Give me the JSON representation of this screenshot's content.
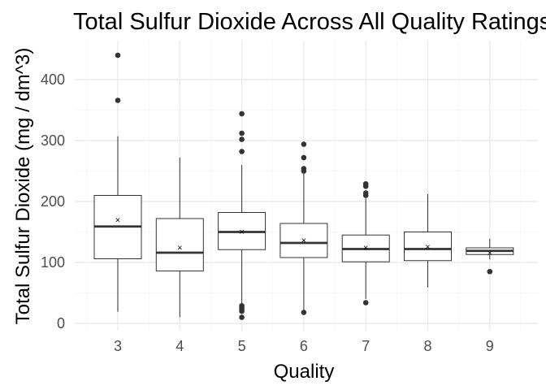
{
  "chart_data": {
    "type": "box",
    "title": "Total Sulfur Dioxide Across All Quality Ratings",
    "xlabel": "Quality",
    "ylabel": "Total Sulfur Dioxide (mg / dm^3)",
    "ylim": [
      -5,
      462
    ],
    "yticks": [
      0,
      100,
      200,
      300,
      400
    ],
    "grid": true,
    "categories": [
      "3",
      "4",
      "5",
      "6",
      "7",
      "8",
      "9"
    ],
    "boxes": [
      {
        "category": "3",
        "whisker_low": 19,
        "q1": 106,
        "median": 159,
        "q3": 210,
        "whisker_high": 307,
        "mean": 170,
        "outliers": [
          366,
          440
        ]
      },
      {
        "category": "4",
        "whisker_low": 10,
        "q1": 86,
        "median": 116,
        "q3": 172,
        "whisker_high": 272,
        "mean": 125,
        "outliers": []
      },
      {
        "category": "5",
        "whisker_low": 32,
        "q1": 121,
        "median": 150,
        "q3": 182,
        "whisker_high": 260,
        "mean": 151,
        "outliers": [
          10,
          20,
          23,
          26,
          29,
          282,
          302,
          312,
          344
        ]
      },
      {
        "category": "6",
        "whisker_low": 19,
        "q1": 108,
        "median": 132,
        "q3": 164,
        "whisker_high": 249,
        "mean": 137,
        "outliers": [
          18,
          250,
          254,
          272,
          294
        ]
      },
      {
        "category": "7",
        "whisker_low": 40,
        "q1": 101,
        "median": 122,
        "q3": 145,
        "whisker_high": 205,
        "mean": 125,
        "outliers": [
          34,
          210,
          214,
          225,
          229
        ]
      },
      {
        "category": "8",
        "whisker_low": 59,
        "q1": 103,
        "median": 122,
        "q3": 150,
        "whisker_high": 212,
        "mean": 126,
        "outliers": []
      },
      {
        "category": "9",
        "whisker_low": 105,
        "q1": 113,
        "median": 119,
        "q3": 124,
        "whisker_high": 139,
        "mean": 116,
        "outliers": [
          85
        ]
      }
    ]
  }
}
